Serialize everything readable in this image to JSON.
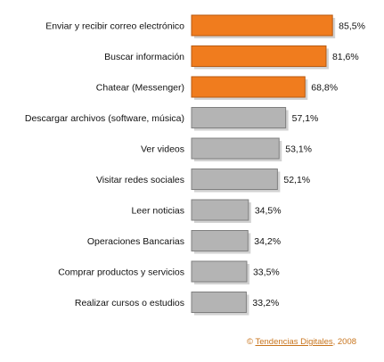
{
  "chart_data": {
    "type": "bar",
    "orientation": "horizontal",
    "categories": [
      "Enviar y recibir correo electrónico",
      "Buscar información",
      "Chatear (Messenger)",
      "Descargar archivos (software, música)",
      "Ver videos",
      "Visitar redes sociales",
      "Leer noticias",
      "Operaciones Bancarias",
      "Comprar productos y servicios",
      "Realizar cursos o estudios"
    ],
    "values": [
      85.5,
      81.6,
      68.8,
      57.1,
      53.1,
      52.1,
      34.5,
      34.2,
      33.5,
      33.2
    ],
    "value_labels": [
      "85,5%",
      "81,6%",
      "68,8%",
      "57,1%",
      "53,1%",
      "52,1%",
      "34,5%",
      "34,2%",
      "33,5%",
      "33,2%"
    ],
    "highlight_count": 3,
    "xlim": [
      0,
      100
    ],
    "grid": false,
    "legend": "none"
  },
  "colors": {
    "highlight": "#f07c1e",
    "highlight_edge": "#b85a10",
    "normal": "#b4b4b4",
    "normal_edge": "#7f7f7f",
    "shadow": "#d2d2d2",
    "credit": "#c8741c"
  },
  "credit": {
    "symbol": "©",
    "name": "Tendencias Digitales",
    "year": ", 2008"
  }
}
